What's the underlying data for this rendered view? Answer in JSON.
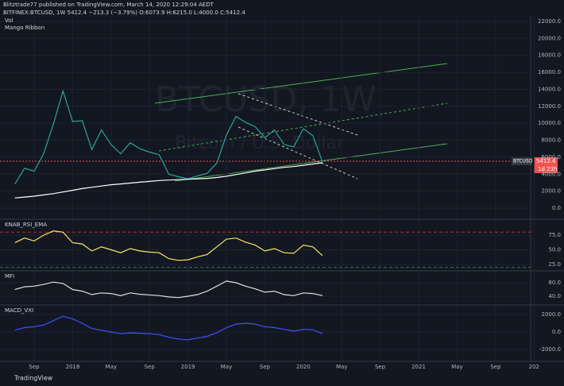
{
  "header": {
    "author_line": "Blitztrade77 published on TradingView.com, March 14, 2020 12:29:04 AEDT",
    "symbol_line": "BITFINEX:BTCUSD, 1W  5412.4  −213.3 (−3.79%)  O:6073.9  H:6215.0  L:4000.0  C:5412.4"
  },
  "watermark": {
    "symbol": "BTCUSD, 1W",
    "name": "Bitcoin / U.S. Dollar"
  },
  "price_tag": {
    "symbol": "BTCUSD",
    "price": "5412.4",
    "countdown": "1d 23h"
  },
  "footer": "TradingView",
  "x_axis": {
    "categories": [
      null,
      null,
      "Sep",
      null,
      null,
      null,
      "2018",
      null,
      null,
      null,
      "May",
      null,
      null,
      null,
      "Sep",
      null,
      null,
      null,
      "2019",
      null,
      null,
      null,
      "May",
      null,
      null,
      null,
      "Sep",
      null,
      null,
      null,
      "2020",
      null,
      null,
      null,
      "May",
      null,
      null,
      null,
      "Sep",
      null,
      null,
      null,
      "2021",
      null,
      null,
      null,
      "May",
      null,
      null,
      null,
      "Sep",
      null,
      null,
      null,
      "202"
    ]
  },
  "panes": [
    {
      "legend": [
        "Vol",
        "Mango Ribbon"
      ],
      "ylim": [
        -1217,
        22655
      ],
      "yticks": [
        {
          "value": 22000,
          "label": "22000.0"
        },
        {
          "value": 20000,
          "label": "20000.0"
        },
        {
          "value": 18000,
          "label": "18000.0"
        },
        {
          "value": 16000,
          "label": "16000.0"
        },
        {
          "value": 14000,
          "label": "14000.0"
        },
        {
          "value": 12000,
          "label": "12000.0"
        },
        {
          "value": 10000,
          "label": "10000.0"
        },
        {
          "value": 8000,
          "label": "8000.0"
        },
        {
          "value": 6000,
          "label": "6000.0"
        },
        {
          "value": 4000,
          "label": "4000.0"
        },
        {
          "value": 2000,
          "label": "2000.0"
        },
        {
          "value": 0,
          "label": "0.0"
        }
      ],
      "series": [
        {
          "color": "#26a69a",
          "values": [
            2850,
            4700,
            4350,
            6450,
            9900,
            13800,
            10200,
            10300,
            6900,
            9200,
            7500,
            6400,
            7700,
            7000,
            6600,
            6300,
            4000,
            3700,
            3450,
            3800,
            4100,
            5300,
            8600,
            10800,
            10100,
            9600,
            8300,
            9200,
            7500,
            7200,
            9350,
            8550,
            5412.4,
            null,
            null,
            null,
            null,
            null,
            null,
            null,
            null,
            null,
            null,
            null,
            null,
            null,
            null,
            null,
            null,
            null,
            null,
            null,
            null,
            null,
            null
          ]
        },
        {
          "color": "#ffffff",
          "values": [
            1200,
            1300,
            1400,
            1550,
            1700,
            1900,
            2100,
            2300,
            2450,
            2600,
            2750,
            2850,
            2950,
            3050,
            3150,
            3250,
            3300,
            3350,
            3400,
            3450,
            3500,
            3600,
            3750,
            3950,
            4150,
            4350,
            4500,
            4650,
            4800,
            4900,
            5050,
            5200,
            5350,
            null,
            null,
            null,
            null,
            null,
            null,
            null,
            null,
            null,
            null,
            null,
            null,
            null,
            null,
            null,
            null,
            null,
            null,
            null,
            null,
            null,
            null
          ]
        }
      ]
    },
    {
      "legend": [
        "KNAB_RSI_EMA"
      ],
      "ylim": [
        15.5,
        100.7
      ],
      "yticks": [
        {
          "value": 75,
          "label": "75.0"
        },
        {
          "value": 50,
          "label": "50.0"
        },
        {
          "value": 25,
          "label": "25.0"
        }
      ],
      "levels": [
        {
          "value": 80,
          "color": "#c62828"
        },
        {
          "value": 20,
          "color": "#2e7d32"
        }
      ],
      "series": [
        {
          "color": "#f5e663",
          "values": [
            62,
            70,
            65,
            75,
            82,
            80,
            62,
            60,
            48,
            55,
            50,
            45,
            52,
            48,
            46,
            45,
            35,
            32,
            33,
            38,
            42,
            55,
            68,
            70,
            63,
            58,
            48,
            52,
            45,
            44,
            58,
            55,
            40,
            null,
            null,
            null,
            null,
            null,
            null,
            null,
            null,
            null,
            null,
            null,
            null,
            null,
            null,
            null,
            null,
            null,
            null,
            null,
            null,
            null,
            null
          ]
        }
      ]
    },
    {
      "legend": [
        "MFI"
      ],
      "ylim": [
        16.5,
        113
      ],
      "yticks": [
        {
          "value": 80,
          "label": "80.0"
        },
        {
          "value": 40,
          "label": "40.0"
        }
      ],
      "series": [
        {
          "color": "#e0e0e0",
          "values": [
            60,
            68,
            70,
            75,
            82,
            78,
            60,
            55,
            45,
            50,
            48,
            42,
            50,
            46,
            44,
            42,
            38,
            36,
            40,
            45,
            55,
            70,
            85,
            80,
            70,
            62,
            52,
            55,
            45,
            42,
            50,
            48,
            42,
            null,
            null,
            null,
            null,
            null,
            null,
            null,
            null,
            null,
            null,
            null,
            null,
            null,
            null,
            null,
            null,
            null,
            null,
            null,
            null,
            null,
            null
          ]
        }
      ]
    },
    {
      "legend": [
        "MACD_VXI"
      ],
      "ylim": [
        -3364,
        3000
      ],
      "yticks": [
        {
          "value": 2000,
          "label": "2000.0"
        },
        {
          "value": 0,
          "label": "0.0"
        },
        {
          "value": -2000,
          "label": "-2000.0"
        }
      ],
      "series": [
        {
          "color": "#3f51ff",
          "values": [
            200,
            500,
            600,
            800,
            1300,
            1800,
            1500,
            1000,
            400,
            200,
            0,
            -200,
            -100,
            -150,
            -200,
            -300,
            -600,
            -800,
            -900,
            -700,
            -500,
            -100,
            500,
            900,
            1000,
            900,
            600,
            500,
            300,
            100,
            300,
            250,
            -200,
            null,
            null,
            null,
            null,
            null,
            null,
            null,
            null,
            null,
            null,
            null,
            null,
            null,
            null,
            null,
            null,
            null,
            null,
            null,
            null,
            null,
            null
          ]
        }
      ]
    }
  ]
}
